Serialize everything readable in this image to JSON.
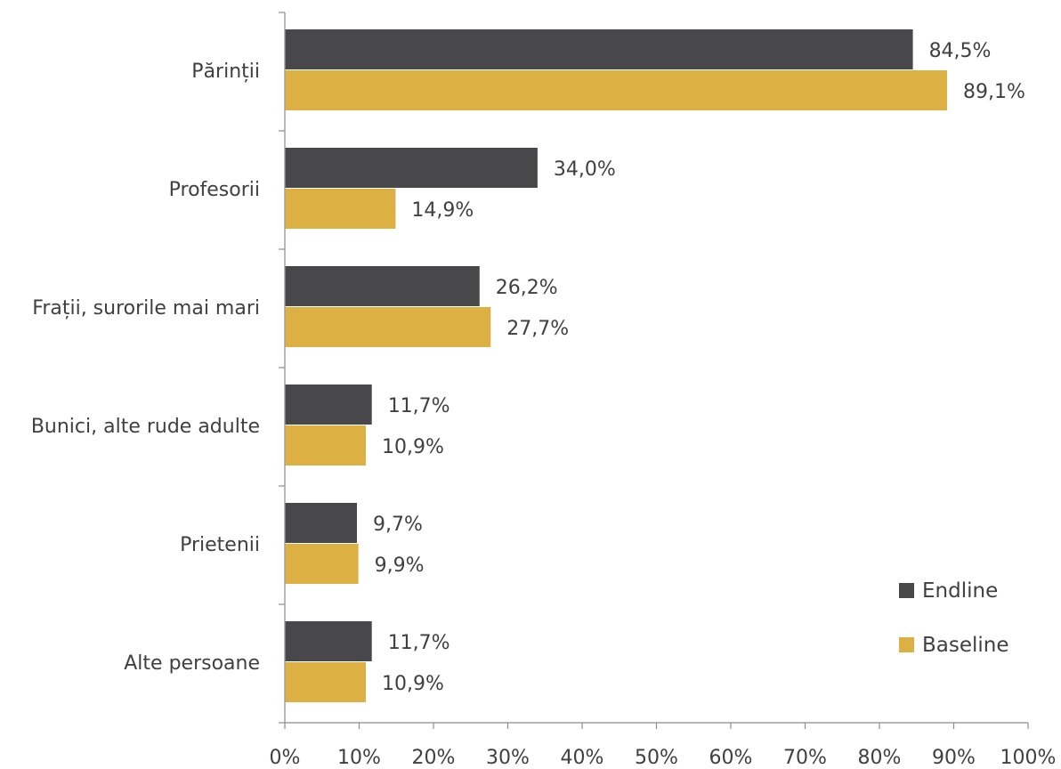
{
  "chart_data": {
    "type": "bar",
    "orientation": "horizontal",
    "categories": [
      "Părinții",
      "Profesorii",
      "Frații, surorile mai mari",
      "Bunici, alte rude adulte",
      "Prietenii",
      "Alte persoane"
    ],
    "series": [
      {
        "name": "Endline",
        "color": "#48484a",
        "values": [
          84.5,
          34.0,
          26.2,
          11.7,
          9.7,
          11.7
        ],
        "labels": [
          "84,5%",
          "34,0%",
          "26,2%",
          "11,7%",
          "9,7%",
          "11,7%"
        ]
      },
      {
        "name": "Baseline",
        "color": "#dcb043",
        "values": [
          89.1,
          14.9,
          27.7,
          10.9,
          9.9,
          10.9
        ],
        "labels": [
          "89,1%",
          "14,9%",
          "27,7%",
          "10,9%",
          "9,9%",
          "10,9%"
        ]
      }
    ],
    "xlim": [
      0,
      100
    ],
    "x_ticks": [
      "0%",
      "10%",
      "20%",
      "30%",
      "40%",
      "50%",
      "60%",
      "70%",
      "80%",
      "90%",
      "100%"
    ],
    "grid": false,
    "legend_position": "bottom-right",
    "title": "",
    "xlabel": "",
    "ylabel": ""
  }
}
